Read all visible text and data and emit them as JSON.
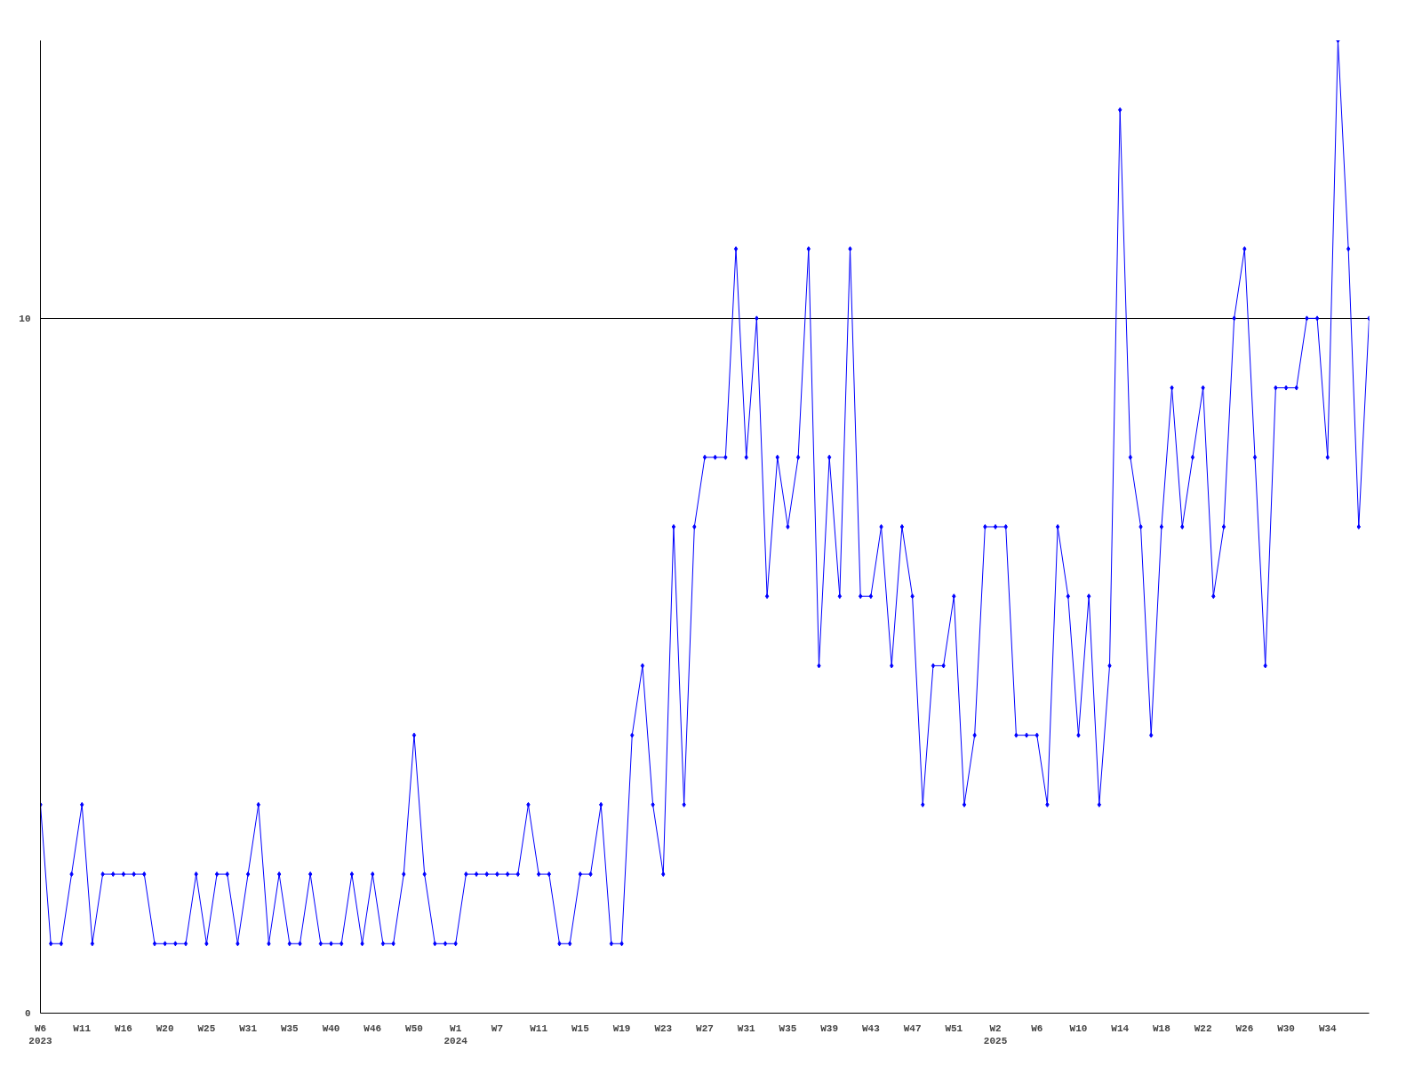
{
  "chart_data": {
    "type": "line",
    "color": "#0000ff",
    "marker": "diamond",
    "grid": "y",
    "ylim": [
      0,
      14
    ],
    "yticks": [
      0,
      10
    ],
    "categories": [
      "W6\n2023",
      null,
      null,
      null,
      "W11",
      null,
      null,
      null,
      "W16",
      null,
      null,
      null,
      "W20",
      null,
      null,
      null,
      "W25",
      null,
      null,
      null,
      "W31",
      null,
      null,
      null,
      "W35",
      null,
      null,
      null,
      "W40",
      null,
      null,
      null,
      "W46",
      null,
      null,
      null,
      "W50",
      null,
      null,
      null,
      "W1\n2024",
      null,
      null,
      null,
      "W7",
      null,
      null,
      null,
      "W11",
      null,
      null,
      null,
      "W15",
      null,
      null,
      null,
      "W19",
      null,
      null,
      null,
      "W23",
      null,
      null,
      null,
      "W27",
      null,
      null,
      null,
      "W31",
      null,
      null,
      null,
      "W35",
      null,
      null,
      null,
      "W39",
      null,
      null,
      null,
      "W43",
      null,
      null,
      null,
      "W47",
      null,
      null,
      null,
      "W51",
      null,
      null,
      null,
      "W2\n2025",
      null,
      null,
      null,
      "W6",
      null,
      null,
      null,
      "W10",
      null,
      null,
      null,
      "W14",
      null,
      null,
      null,
      "W18",
      null,
      null,
      null,
      "W22",
      null,
      null,
      null,
      "W26",
      null,
      null,
      null,
      "W30",
      null,
      null,
      null,
      "W34",
      null,
      null,
      null,
      null
    ],
    "values": [
      3,
      1,
      1,
      2,
      3,
      1,
      2,
      2,
      2,
      2,
      2,
      1,
      1,
      1,
      1,
      2,
      1,
      2,
      2,
      1,
      2,
      3,
      1,
      2,
      1,
      1,
      2,
      1,
      1,
      1,
      2,
      1,
      2,
      1,
      1,
      2,
      4,
      2,
      1,
      1,
      1,
      2,
      2,
      2,
      2,
      2,
      2,
      3,
      2,
      2,
      1,
      1,
      2,
      2,
      3,
      1,
      1,
      4,
      5,
      3,
      2,
      7,
      3,
      7,
      8,
      8,
      8,
      11,
      8,
      10,
      6,
      8,
      7,
      8,
      11,
      5,
      8,
      6,
      11,
      6,
      6,
      7,
      5,
      7,
      6,
      3,
      5,
      5,
      6,
      3,
      4,
      7,
      7,
      7,
      4,
      4,
      4,
      3,
      7,
      6,
      4,
      6,
      3,
      5,
      13,
      8,
      7,
      4,
      7,
      9,
      7,
      8,
      9,
      6,
      7,
      10,
      11,
      8,
      5,
      9,
      9,
      9,
      10,
      10,
      8,
      14,
      11,
      7,
      10
    ]
  }
}
